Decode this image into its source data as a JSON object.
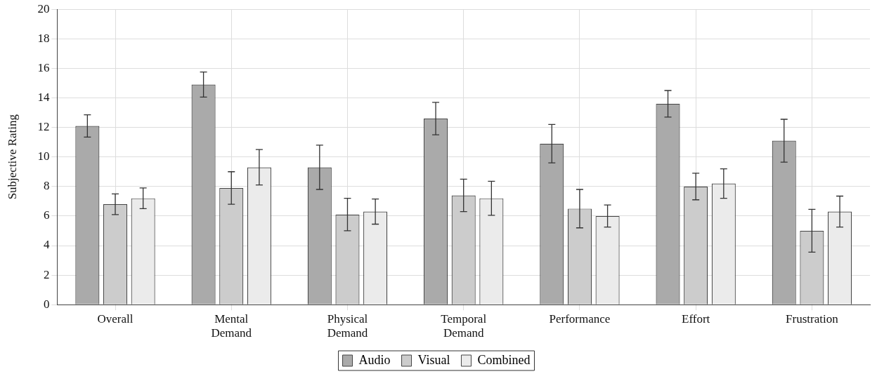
{
  "chart_data": {
    "type": "bar",
    "ylabel": "Subjective Rating",
    "categories": [
      "Overall",
      "Mental Demand",
      "Physical Demand",
      "Temporal Demand",
      "Performance",
      "Effort",
      "Frustration"
    ],
    "series": [
      {
        "name": "Audio",
        "color": "#aaaaaa",
        "values": [
          12.1,
          14.9,
          9.3,
          12.6,
          10.9,
          13.6,
          11.1
        ],
        "errors": [
          0.75,
          0.85,
          1.5,
          1.1,
          1.3,
          0.9,
          1.45
        ]
      },
      {
        "name": "Visual",
        "color": "#cccccc",
        "values": [
          6.8,
          7.9,
          6.1,
          7.4,
          6.5,
          8.0,
          5.0
        ],
        "errors": [
          0.7,
          1.1,
          1.1,
          1.1,
          1.3,
          0.9,
          1.45
        ]
      },
      {
        "name": "Combined",
        "color": "#ebebeb",
        "values": [
          7.2,
          9.3,
          6.3,
          7.2,
          6.0,
          8.2,
          6.3
        ],
        "errors": [
          0.7,
          1.2,
          0.85,
          1.15,
          0.75,
          1.0,
          1.05
        ]
      }
    ],
    "ylim": [
      0,
      20
    ],
    "yticks": [
      0,
      2,
      4,
      6,
      8,
      10,
      12,
      14,
      16,
      18,
      20
    ],
    "grid": true,
    "legend": "bottom"
  }
}
